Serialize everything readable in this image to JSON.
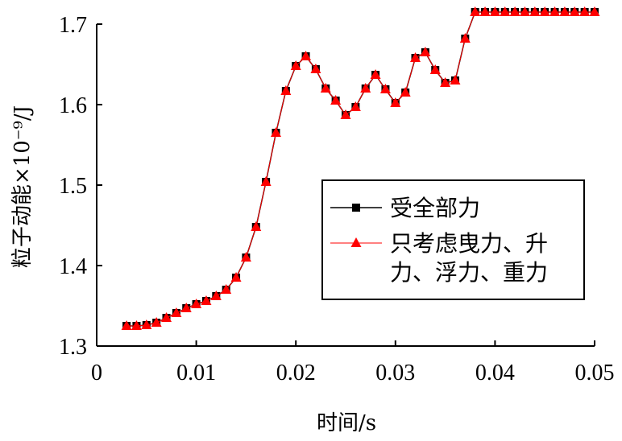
{
  "chart_data": {
    "type": "line",
    "xlabel": "时间/s",
    "ylabel": "粒子动能×10⁻⁹/J",
    "xlim": [
      0,
      0.05
    ],
    "ylim": [
      1.3,
      1.7
    ],
    "x_ticks": [
      "0",
      "0.01",
      "0.02",
      "0.03",
      "0.04",
      "0.05"
    ],
    "y_ticks": [
      "1.3",
      "1.4",
      "1.5",
      "1.6",
      "1.7"
    ],
    "grid": false,
    "legend_position": "right",
    "x": [
      0.003,
      0.004,
      0.005,
      0.006,
      0.007,
      0.008,
      0.009,
      0.01,
      0.011,
      0.012,
      0.013,
      0.014,
      0.015,
      0.016,
      0.017,
      0.018,
      0.019,
      0.02,
      0.021,
      0.022,
      0.023,
      0.024,
      0.025,
      0.026,
      0.027,
      0.028,
      0.029,
      0.03,
      0.031,
      0.032,
      0.033,
      0.034,
      0.035,
      0.036,
      0.037,
      0.038,
      0.039,
      0.04,
      0.041,
      0.042,
      0.043,
      0.044,
      0.045,
      0.046,
      0.047,
      0.048,
      0.049,
      0.05
    ],
    "series": [
      {
        "name": "受全部力",
        "color": "#000000",
        "marker": "square",
        "values": [
          1.325,
          1.325,
          1.326,
          1.329,
          1.335,
          1.341,
          1.347,
          1.352,
          1.356,
          1.362,
          1.37,
          1.385,
          1.41,
          1.448,
          1.504,
          1.565,
          1.617,
          1.648,
          1.66,
          1.644,
          1.62,
          1.605,
          1.587,
          1.597,
          1.62,
          1.637,
          1.619,
          1.602,
          1.615,
          1.658,
          1.665,
          1.643,
          1.627,
          1.63,
          1.682,
          1.715,
          1.715,
          1.715,
          1.715,
          1.715,
          1.715,
          1.715,
          1.715,
          1.715,
          1.715,
          1.715,
          1.715,
          1.715
        ]
      },
      {
        "name": "只考虑曳力、升力、浮力、重力",
        "name_lines": [
          "只考虑曳力、升",
          "力、浮力、重力"
        ],
        "color": "#ff0000",
        "marker": "triangle",
        "values": [
          1.325,
          1.325,
          1.326,
          1.329,
          1.335,
          1.341,
          1.347,
          1.352,
          1.356,
          1.362,
          1.37,
          1.385,
          1.41,
          1.448,
          1.504,
          1.565,
          1.617,
          1.648,
          1.66,
          1.644,
          1.62,
          1.605,
          1.587,
          1.597,
          1.62,
          1.637,
          1.619,
          1.602,
          1.615,
          1.658,
          1.665,
          1.643,
          1.627,
          1.63,
          1.682,
          1.715,
          1.715,
          1.715,
          1.715,
          1.715,
          1.715,
          1.715,
          1.715,
          1.715,
          1.715,
          1.715,
          1.715,
          1.715
        ]
      }
    ]
  }
}
